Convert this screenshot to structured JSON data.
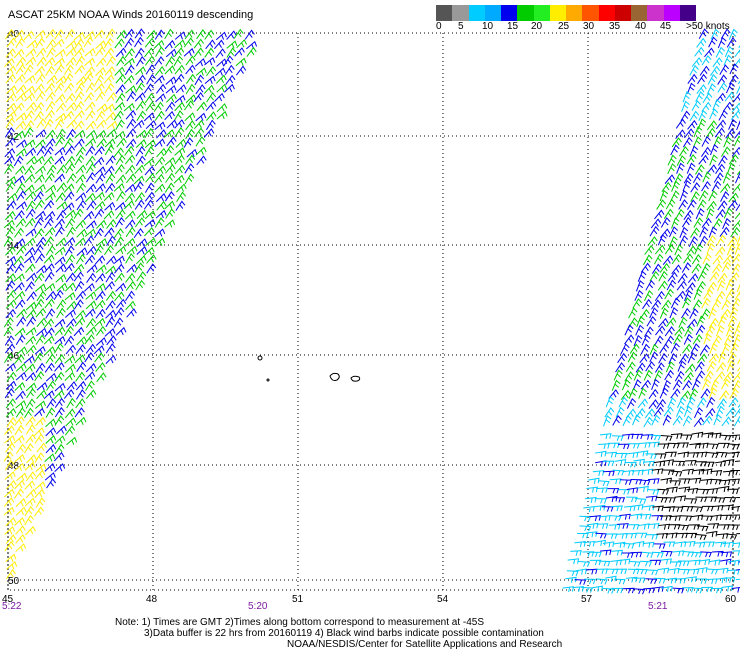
{
  "title": "ASCAT 25KM NOAA Winds 20160119 descending",
  "legend": {
    "colors": [
      "#555555",
      "#999999",
      "#00ccff",
      "#00aaff",
      "#0000ee",
      "#00cc00",
      "#22ee22",
      "#ffee00",
      "#ffaa00",
      "#ff5500",
      "#ff0000",
      "#cc0000",
      "#996633",
      "#cc33cc",
      "#bb00ff",
      "#440088"
    ],
    "labels": [
      "0",
      "5",
      "10",
      "15",
      "20",
      "25",
      "30",
      "35",
      "40",
      "45",
      ">50 knots"
    ]
  },
  "axes": {
    "x_ticks": [
      "45",
      "48",
      "51",
      "54",
      "57",
      "60"
    ],
    "y_ticks": [
      "40",
      "42",
      "44",
      "46",
      "48",
      "50"
    ]
  },
  "times": [
    "5:22",
    "5:20",
    "5:21"
  ],
  "notes": {
    "line1": "Note: 1) Times are GMT 2)Times along bottom correspond to measurement at -45S",
    "line2": "3)Data buffer is 22 hrs from 20160119 4) Black wind barbs indicate possible contamination",
    "line3": "NOAA/NESDIS/Center for Satellite Applications and Research"
  },
  "colors": {
    "low": "#00ccff",
    "med_low": "#0000ee",
    "med": "#00cc00",
    "high": "#ffee00",
    "contaminated": "#000000",
    "time": "#7a1aa0"
  }
}
